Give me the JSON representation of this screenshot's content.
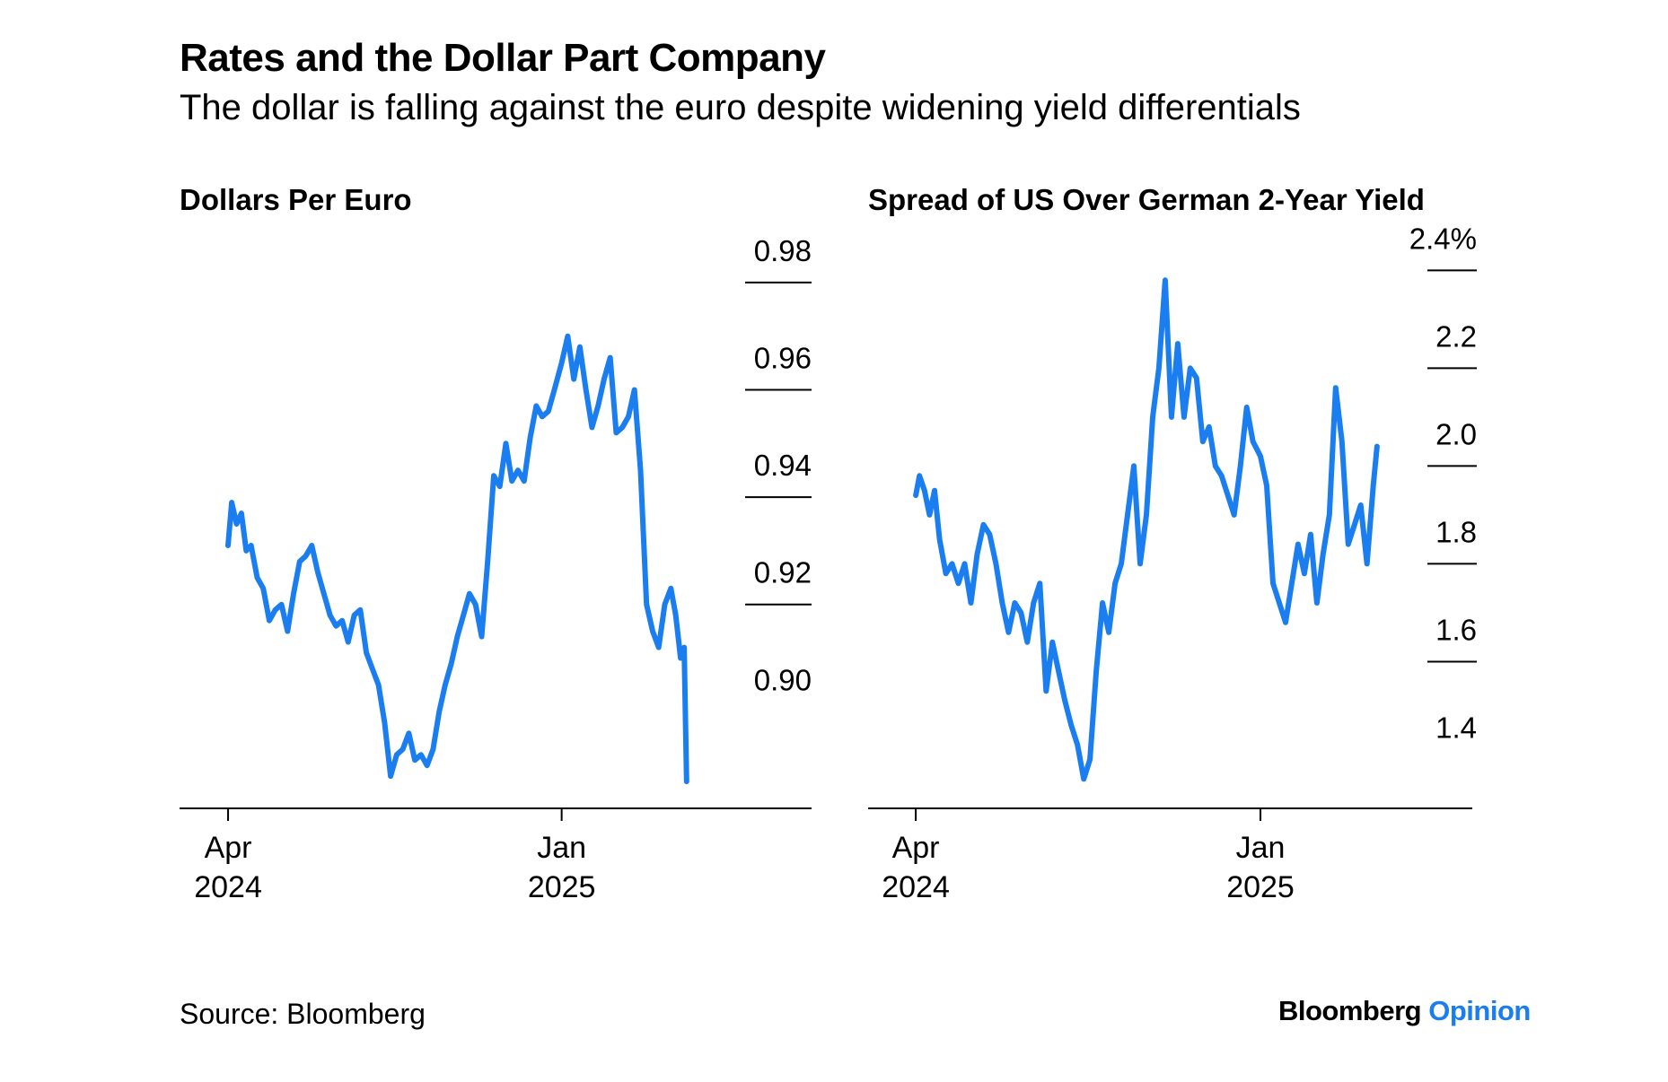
{
  "title": "Rates and the Dollar Part Company",
  "subtitle": "The dollar is falling against the euro despite widening yield differentials",
  "source": "Source: Bloomberg",
  "brand": {
    "name": "Bloomberg",
    "suffix": "Opinion",
    "suffix_color": "#1a7df0"
  },
  "line_color": "#1a7df0",
  "chart_data": [
    {
      "type": "line",
      "title": "Dollars Per Euro",
      "x_ticks": [
        {
          "date": "2024-04-01",
          "label": [
            "Apr",
            "2024"
          ]
        },
        {
          "date": "2025-01-01",
          "label": [
            "Jan",
            "2025"
          ]
        }
      ],
      "y_ticks": [
        "0.98",
        "0.96",
        "0.94",
        "0.92",
        "0.90"
      ],
      "y_tick_values": [
        0.98,
        0.96,
        0.94,
        0.92,
        0.9
      ],
      "ylim": [
        0.882,
        0.985
      ],
      "xlim": [
        "2024-02-21",
        "2025-07-26"
      ],
      "grid": false,
      "series": [
        {
          "x": [
            "2024-04-01",
            "2024-04-04",
            "2024-04-08",
            "2024-04-12",
            "2024-04-16",
            "2024-04-20",
            "2024-04-25",
            "2024-04-30",
            "2024-05-05",
            "2024-05-10",
            "2024-05-15",
            "2024-05-20",
            "2024-05-25",
            "2024-05-30",
            "2024-06-04",
            "2024-06-09",
            "2024-06-14",
            "2024-06-19",
            "2024-06-24",
            "2024-06-29",
            "2024-07-04",
            "2024-07-09",
            "2024-07-14",
            "2024-07-19",
            "2024-07-24",
            "2024-07-29",
            "2024-08-03",
            "2024-08-08",
            "2024-08-13",
            "2024-08-18",
            "2024-08-23",
            "2024-08-28",
            "2024-09-02",
            "2024-09-07",
            "2024-09-12",
            "2024-09-17",
            "2024-09-22",
            "2024-09-27",
            "2024-10-02",
            "2024-10-07",
            "2024-10-12",
            "2024-10-17",
            "2024-10-22",
            "2024-10-27",
            "2024-11-01",
            "2024-11-06",
            "2024-11-11",
            "2024-11-16",
            "2024-11-21",
            "2024-11-26",
            "2024-12-01",
            "2024-12-06",
            "2024-12-11",
            "2024-12-16",
            "2024-12-21",
            "2024-12-26",
            "2025-01-01",
            "2025-01-06",
            "2025-01-11",
            "2025-01-16",
            "2025-01-21",
            "2025-01-26",
            "2025-01-31",
            "2025-02-05",
            "2025-02-10",
            "2025-02-15",
            "2025-02-20",
            "2025-02-25",
            "2025-03-02",
            "2025-03-07",
            "2025-03-12",
            "2025-03-17",
            "2025-03-22",
            "2025-03-27",
            "2025-04-01",
            "2025-04-05",
            "2025-04-09",
            "2025-04-12",
            "2025-04-14"
          ],
          "y": [
            0.931,
            0.939,
            0.935,
            0.937,
            0.93,
            0.931,
            0.925,
            0.923,
            0.917,
            0.919,
            0.92,
            0.915,
            0.922,
            0.928,
            0.929,
            0.931,
            0.926,
            0.922,
            0.918,
            0.916,
            0.917,
            0.913,
            0.918,
            0.919,
            0.911,
            0.908,
            0.905,
            0.898,
            0.888,
            0.892,
            0.893,
            0.896,
            0.891,
            0.892,
            0.89,
            0.893,
            0.9,
            0.905,
            0.909,
            0.914,
            0.918,
            0.922,
            0.92,
            0.914,
            0.928,
            0.944,
            0.942,
            0.95,
            0.943,
            0.945,
            0.943,
            0.951,
            0.957,
            0.955,
            0.956,
            0.96,
            0.965,
            0.97,
            0.962,
            0.968,
            0.96,
            0.953,
            0.957,
            0.962,
            0.966,
            0.952,
            0.953,
            0.955,
            0.96,
            0.945,
            0.92,
            0.915,
            0.912,
            0.92,
            0.923,
            0.918,
            0.91,
            0.912,
            0.887
          ]
        }
      ]
    },
    {
      "type": "line",
      "title": "Spread of US Over German 2-Year Yield",
      "x_ticks": [
        {
          "date": "2024-04-01",
          "label": [
            "Apr",
            "2024"
          ]
        },
        {
          "date": "2025-01-01",
          "label": [
            "Jan",
            "2025"
          ]
        }
      ],
      "y_ticks": [
        "2.4%",
        "2.2",
        "2.0",
        "1.8",
        "1.6",
        "1.4"
      ],
      "y_tick_values": [
        2.4,
        2.2,
        2.0,
        1.8,
        1.6,
        1.4
      ],
      "ylim": [
        1.3,
        2.43
      ],
      "xlim": [
        "2024-02-23",
        "2025-06-19"
      ],
      "grid": false,
      "series": [
        {
          "x": [
            "2024-04-01",
            "2024-04-04",
            "2024-04-08",
            "2024-04-12",
            "2024-04-16",
            "2024-04-20",
            "2024-04-25",
            "2024-04-30",
            "2024-05-05",
            "2024-05-10",
            "2024-05-15",
            "2024-05-20",
            "2024-05-25",
            "2024-05-30",
            "2024-06-04",
            "2024-06-09",
            "2024-06-14",
            "2024-06-19",
            "2024-06-24",
            "2024-06-29",
            "2024-07-04",
            "2024-07-09",
            "2024-07-14",
            "2024-07-19",
            "2024-07-24",
            "2024-07-29",
            "2024-08-03",
            "2024-08-08",
            "2024-08-13",
            "2024-08-18",
            "2024-08-23",
            "2024-08-28",
            "2024-09-02",
            "2024-09-07",
            "2024-09-12",
            "2024-09-17",
            "2024-09-22",
            "2024-09-27",
            "2024-10-02",
            "2024-10-07",
            "2024-10-12",
            "2024-10-17",
            "2024-10-22",
            "2024-10-27",
            "2024-11-01",
            "2024-11-06",
            "2024-11-11",
            "2024-11-16",
            "2024-11-21",
            "2024-11-26",
            "2024-12-01",
            "2024-12-06",
            "2024-12-11",
            "2024-12-16",
            "2024-12-21",
            "2024-12-26",
            "2025-01-01",
            "2025-01-06",
            "2025-01-11",
            "2025-01-16",
            "2025-01-21",
            "2025-01-26",
            "2025-01-31",
            "2025-02-05",
            "2025-02-10",
            "2025-02-15",
            "2025-02-20",
            "2025-02-25",
            "2025-03-02",
            "2025-03-07",
            "2025-03-12",
            "2025-03-17",
            "2025-03-22",
            "2025-03-27",
            "2025-04-01",
            "2025-04-04"
          ],
          "y": [
            1.94,
            1.98,
            1.95,
            1.9,
            1.95,
            1.85,
            1.78,
            1.8,
            1.76,
            1.8,
            1.72,
            1.82,
            1.88,
            1.86,
            1.8,
            1.72,
            1.66,
            1.72,
            1.7,
            1.64,
            1.72,
            1.76,
            1.54,
            1.64,
            1.58,
            1.52,
            1.47,
            1.43,
            1.36,
            1.4,
            1.58,
            1.72,
            1.66,
            1.76,
            1.8,
            1.9,
            2.0,
            1.8,
            1.9,
            2.1,
            2.2,
            2.38,
            2.1,
            2.25,
            2.1,
            2.2,
            2.18,
            2.05,
            2.08,
            2.0,
            1.98,
            1.94,
            1.9,
            2.0,
            2.12,
            2.05,
            2.02,
            1.96,
            1.76,
            1.72,
            1.68,
            1.76,
            1.84,
            1.78,
            1.86,
            1.72,
            1.82,
            1.9,
            2.16,
            2.05,
            1.84,
            1.88,
            1.92,
            1.8,
            1.96,
            2.04
          ]
        }
      ]
    }
  ]
}
